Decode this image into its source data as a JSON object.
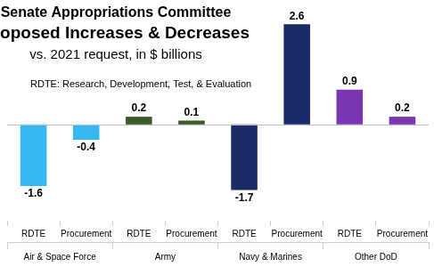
{
  "chart_data": {
    "type": "bar",
    "title": "Senate Appropriations Committee",
    "subtitle": "Proposed Increases & Decreases",
    "annotations": [
      "vs. 2021 request, in $ billions",
      "RDTE: Research, Development, Test, & Evaluation"
    ],
    "categories": [
      "RDTE",
      "Procurement",
      "RDTE",
      "Procurement",
      "RDTE",
      "Procurement",
      "RDTE",
      "Procurement"
    ],
    "groups": [
      "Air & Space Force",
      "Army",
      "Navy & Marines",
      "Other DoD"
    ],
    "values": [
      -1.6,
      -0.4,
      0.2,
      0.1,
      -1.7,
      2.6,
      0.9,
      0.2
    ],
    "colors": [
      "#33b8ef",
      "#33b8ef",
      "#3a5a28",
      "#3a5a28",
      "#1a2a66",
      "#1a2a66",
      "#7a35b0",
      "#7a35b0"
    ],
    "ylim": [
      -2.5,
      3
    ],
    "grid": false,
    "data_labels": true,
    "tick_labels": "x"
  }
}
